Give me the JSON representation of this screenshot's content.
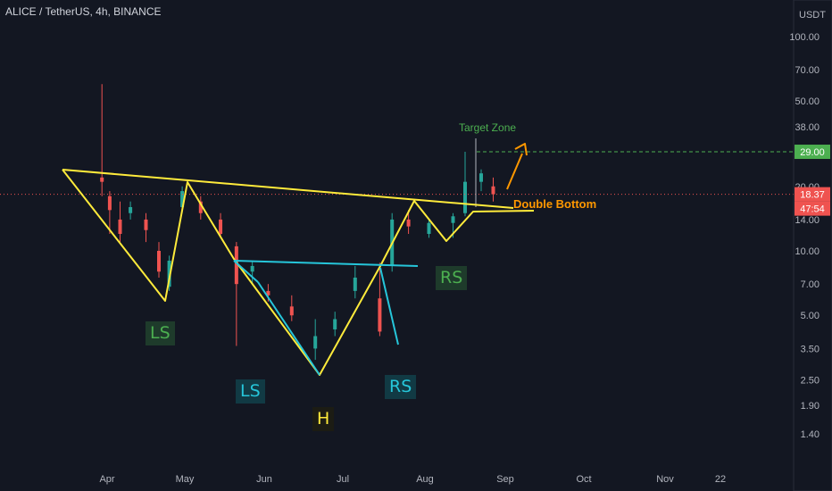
{
  "header": {
    "title": "ALICE / TetherUS, 4h, BINANCE"
  },
  "axis": {
    "currency": "USDT",
    "price_badge": "18.37",
    "countdown": "47:54",
    "target_badge": "29.00"
  },
  "annotations": {
    "ls_big": "LS",
    "ls_small": "LS",
    "h": "H",
    "rs_small": "RS",
    "rs_big": "RS",
    "target_zone": "Target Zone",
    "double_bottom": "Double Bottom"
  },
  "colors": {
    "background": "#131722",
    "up": "#26a69a",
    "down": "#ef5350",
    "yellow_lines": "#ffeb3b",
    "cyan_lines": "#26c6da",
    "orange_arrow": "#ff9800",
    "target_line": "#4caf50"
  },
  "chart_data": {
    "type": "candlestick",
    "symbol": "ALICE / TetherUS",
    "interval": "4h",
    "exchange": "BINANCE",
    "scale": "log",
    "ylim": [
      1.4,
      100
    ],
    "y_ticks": [
      1.4,
      1.9,
      2.5,
      3.5,
      5.0,
      7.0,
      10.0,
      14.0,
      20.0,
      38.0,
      50.0,
      70.0,
      100.0
    ],
    "x_ticks": [
      "Apr",
      "May",
      "Jun",
      "Jul",
      "Aug",
      "Sep",
      "Oct",
      "Nov",
      "22"
    ],
    "current_price": 18.37,
    "target_price": 29.0,
    "series": [
      {
        "month": 3.4,
        "open": 22.0,
        "close": 21.0,
        "high": 60.0,
        "low": 18.0
      },
      {
        "month": 3.55,
        "open": 18.0,
        "close": 15.5,
        "high": 19.0,
        "low": 12.0
      },
      {
        "month": 3.75,
        "open": 14.0,
        "close": 12.0,
        "high": 17.0,
        "low": 11.0
      },
      {
        "month": 3.95,
        "open": 15.0,
        "close": 16.0,
        "high": 17.0,
        "low": 14.0
      },
      {
        "month": 4.25,
        "open": 14.0,
        "close": 12.5,
        "high": 15.0,
        "low": 11.0
      },
      {
        "month": 4.5,
        "open": 10.0,
        "close": 8.0,
        "high": 11.0,
        "low": 7.5
      },
      {
        "month": 4.7,
        "open": 6.8,
        "close": 9.0,
        "high": 9.5,
        "low": 6.5
      },
      {
        "month": 4.95,
        "open": 16.0,
        "close": 19.0,
        "high": 20.0,
        "low": 15.0
      },
      {
        "month": 5.2,
        "open": 17.0,
        "close": 15.0,
        "high": 18.0,
        "low": 14.0
      },
      {
        "month": 5.45,
        "open": 14.0,
        "close": 12.0,
        "high": 15.0,
        "low": 11.5
      },
      {
        "month": 5.65,
        "open": 10.5,
        "close": 7.0,
        "high": 11.0,
        "low": 3.6
      },
      {
        "month": 5.85,
        "open": 8.0,
        "close": 8.5,
        "high": 9.0,
        "low": 7.0
      },
      {
        "month": 6.05,
        "open": 6.5,
        "close": 6.2,
        "high": 7.0,
        "low": 5.8
      },
      {
        "month": 6.35,
        "open": 5.5,
        "close": 5.0,
        "high": 6.2,
        "low": 4.7
      },
      {
        "month": 6.65,
        "open": 3.5,
        "close": 4.0,
        "high": 4.8,
        "low": 3.1
      },
      {
        "month": 6.9,
        "open": 4.3,
        "close": 4.8,
        "high": 5.2,
        "low": 4.0
      },
      {
        "month": 7.15,
        "open": 6.5,
        "close": 7.5,
        "high": 8.5,
        "low": 6.0
      },
      {
        "month": 7.45,
        "open": 6.0,
        "close": 4.2,
        "high": 8.8,
        "low": 4.0
      },
      {
        "month": 7.6,
        "open": 8.5,
        "close": 14.0,
        "high": 15.0,
        "low": 8.0
      },
      {
        "month": 7.8,
        "open": 14.0,
        "close": 13.0,
        "high": 15.5,
        "low": 12.0
      },
      {
        "month": 8.05,
        "open": 12.0,
        "close": 13.5,
        "high": 14.0,
        "low": 11.5
      },
      {
        "month": 8.35,
        "open": 13.5,
        "close": 14.5,
        "high": 15.0,
        "low": 11.5
      },
      {
        "month": 8.5,
        "open": 15.0,
        "close": 21.0,
        "high": 29.0,
        "low": 14.5
      },
      {
        "month": 8.7,
        "open": 21.0,
        "close": 23.0,
        "high": 24.0,
        "low": 19.0
      },
      {
        "month": 8.85,
        "open": 20.0,
        "close": 18.37,
        "high": 22.0,
        "low": 17.0
      }
    ]
  }
}
